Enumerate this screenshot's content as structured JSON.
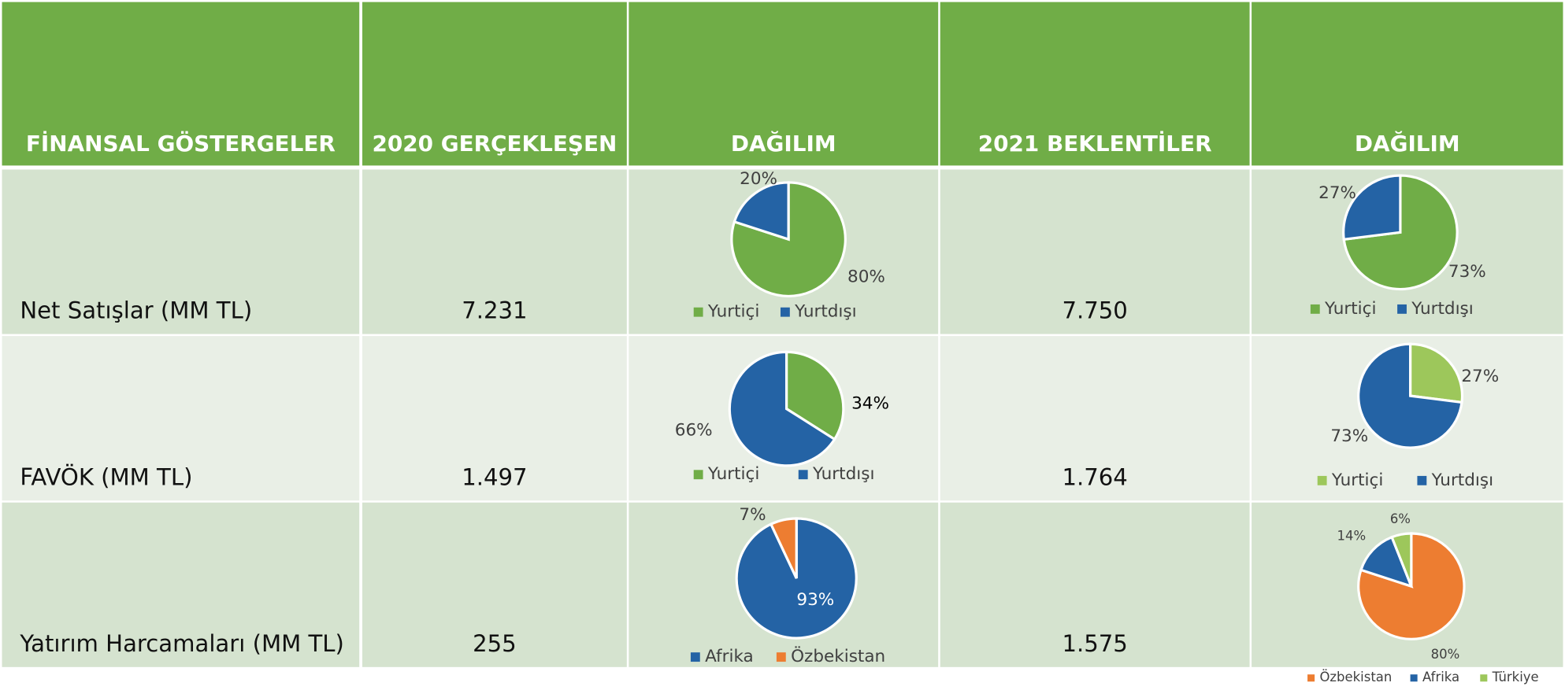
{
  "header": [
    "FİNANSAL GÖSTERGELER",
    "2020 GERÇEKLEŞEN",
    "DAĞILIM",
    "2021 BEKLENTİLER",
    "DAĞILIM"
  ],
  "rows": [
    {
      "label": "Net Satışlar (MM TL)",
      "actual_2020": "7.231",
      "distribution_2020": {
        "type": "pie",
        "categories": [
          "Yurtiçi",
          "Yurtdışı"
        ],
        "values": [
          80,
          20
        ],
        "value_labels": [
          "80%",
          "20%"
        ],
        "colors": [
          "#70ad47",
          "#2463a5"
        ]
      },
      "expected_2021": "7.750",
      "distribution_2021": {
        "type": "pie",
        "categories": [
          "Yurtiçi",
          "Yurtdışı"
        ],
        "values": [
          73,
          27
        ],
        "value_labels": [
          "73%",
          "27%"
        ],
        "colors": [
          "#70ad47",
          "#2463a5"
        ]
      }
    },
    {
      "label": "FAVÖK (MM TL)",
      "actual_2020": "1.497",
      "distribution_2020": {
        "type": "pie",
        "categories": [
          "Yurtiçi",
          "Yurtdışı"
        ],
        "values": [
          34,
          66
        ],
        "value_labels": [
          "34%",
          "66%"
        ],
        "colors": [
          "#70ad47",
          "#2463a5"
        ]
      },
      "expected_2021": "1.764",
      "distribution_2021": {
        "type": "pie",
        "categories": [
          "Yurtiçi",
          "Yurtdışı"
        ],
        "values": [
          27,
          73
        ],
        "value_labels": [
          "27%",
          "73%"
        ],
        "colors": [
          "#9dc75b",
          "#2463a5"
        ]
      }
    },
    {
      "label": "Yatırım Harcamaları (MM TL)",
      "actual_2020": "255",
      "distribution_2020": {
        "type": "pie",
        "categories": [
          "Afrika",
          "Özbekistan"
        ],
        "values": [
          93,
          7
        ],
        "value_labels": [
          "93%",
          "7%"
        ],
        "colors": [
          "#2463a5",
          "#ed7d31"
        ]
      },
      "expected_2021": "1.575",
      "distribution_2021": {
        "type": "pie",
        "categories": [
          "Özbekistan",
          "Afrika",
          "Türkiye"
        ],
        "values": [
          80,
          14,
          6
        ],
        "value_labels": [
          "80%",
          "14%",
          "6%"
        ],
        "colors": [
          "#ed7d31",
          "#2463a5",
          "#9dc75b"
        ]
      }
    }
  ]
}
